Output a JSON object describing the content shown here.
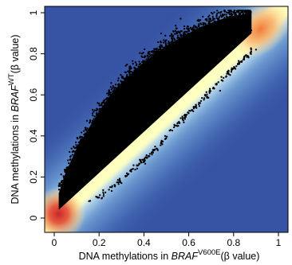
{
  "chart_data": {
    "type": "scatter",
    "description_style": "smoothed density scatter (blue background, yellow-red high density) with black outlier points",
    "xlim": [
      0,
      1
    ],
    "ylim": [
      0,
      1
    ],
    "x_ticks": [
      0,
      0.2,
      0.4,
      0.6,
      0.8,
      1
    ],
    "x_tick_labels": [
      "0",
      "0.2",
      "0.4",
      "0.6",
      "0.8",
      "1"
    ],
    "y_ticks": [
      0,
      0.2,
      0.4,
      0.6,
      0.8,
      1
    ],
    "y_tick_labels": [
      "0",
      "0.2",
      "0.4",
      "0.6",
      "0.8",
      "1"
    ],
    "xlabel": {
      "prefix": "DNA methylations in ",
      "gene": "BRAF",
      "superscript": "V600E",
      "suffix": "(β value)"
    },
    "ylabel": {
      "prefix": "DNA methylations in ",
      "gene": "BRAF",
      "superscript": "WT",
      "suffix": "(β value)"
    },
    "density_band": {
      "centerline": [
        [
          0.0,
          0.0
        ],
        [
          1.0,
          1.0
        ]
      ],
      "hotspots": [
        {
          "x": 0.02,
          "y": 0.02,
          "level": "high"
        },
        {
          "x": 0.92,
          "y": 0.92,
          "level": "high"
        }
      ]
    },
    "upper_cloud_envelope": [
      [
        0.02,
        0.12
      ],
      [
        0.05,
        0.22
      ],
      [
        0.1,
        0.34
      ],
      [
        0.15,
        0.43
      ],
      [
        0.2,
        0.52
      ],
      [
        0.25,
        0.6
      ],
      [
        0.3,
        0.66
      ],
      [
        0.35,
        0.71
      ],
      [
        0.4,
        0.76
      ],
      [
        0.45,
        0.8
      ],
      [
        0.5,
        0.84
      ],
      [
        0.55,
        0.87
      ],
      [
        0.6,
        0.9
      ],
      [
        0.65,
        0.93
      ],
      [
        0.7,
        0.95
      ],
      [
        0.75,
        0.97
      ],
      [
        0.8,
        0.985
      ],
      [
        0.85,
        0.995
      ],
      [
        0.88,
        1.0
      ]
    ],
    "lower_point_line": [
      [
        0.15,
        0.07
      ],
      [
        0.25,
        0.14
      ],
      [
        0.35,
        0.24
      ],
      [
        0.45,
        0.33
      ],
      [
        0.55,
        0.46
      ],
      [
        0.65,
        0.56
      ],
      [
        0.75,
        0.68
      ],
      [
        0.85,
        0.78
      ],
      [
        0.88,
        0.81
      ]
    ],
    "colors": {
      "background": "#3753a3",
      "low": "#4a78c0",
      "mid": "#ffffc0",
      "high": "#f4a04a",
      "peak": "#d43a2a",
      "points": "#000000"
    }
  }
}
